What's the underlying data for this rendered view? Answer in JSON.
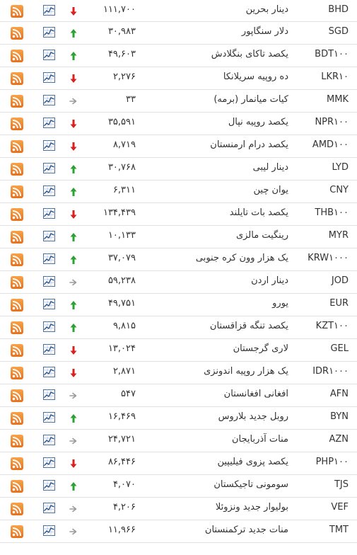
{
  "colors": {
    "up": "#2aa131",
    "down": "#d92020",
    "flat": "#9a9a9a",
    "rss": "#f0821f",
    "chart": "#4a6fa5"
  },
  "icons": {
    "feed": "rss-icon",
    "chart": "chart-icon",
    "trend": "trend-arrow-icon"
  },
  "rows": [
    {
      "code": "BHD",
      "name": "دینار بحرین",
      "price": "۱۱۱,۷۰۰",
      "trend": "down"
    },
    {
      "code": "SGD",
      "name": "دلار سنگاپور",
      "price": "۳۰,۹۸۳",
      "trend": "up"
    },
    {
      "code": "BDT۱۰۰",
      "name": "یکصد تاکای بنگلادش",
      "price": "۴۹,۶۰۳",
      "trend": "up"
    },
    {
      "code": "LKR۱۰",
      "name": "ده روپیه سریلانکا",
      "price": "۲,۲۷۶",
      "trend": "down"
    },
    {
      "code": "MMK",
      "name": "کیات میانمار (برمه)",
      "price": "۳۳",
      "trend": "flat"
    },
    {
      "code": "NPR۱۰۰",
      "name": "یکصد روپیه نپال",
      "price": "۳۵,۵۹۱",
      "trend": "down"
    },
    {
      "code": "AMD۱۰۰",
      "name": "یکصد درام ارمنستان",
      "price": "۸,۷۱۹",
      "trend": "down"
    },
    {
      "code": "LYD",
      "name": "دینار لیبی",
      "price": "۳۰,۷۶۸",
      "trend": "up"
    },
    {
      "code": "CNY",
      "name": "یوان چین",
      "price": "۶,۳۱۱",
      "trend": "up"
    },
    {
      "code": "THB۱۰۰",
      "name": "یکصد بات تایلند",
      "price": "۱۳۴,۴۳۹",
      "trend": "down"
    },
    {
      "code": "MYR",
      "name": "رینگیت مالزی",
      "price": "۱۰,۱۳۳",
      "trend": "up"
    },
    {
      "code": "KRW۱۰۰۰",
      "name": "یک هزار وون کره جنوبی",
      "price": "۳۷,۰۷۹",
      "trend": "up"
    },
    {
      "code": "JOD",
      "name": "دینار اردن",
      "price": "۵۹,۲۳۸",
      "trend": "flat"
    },
    {
      "code": "EUR",
      "name": "یورو",
      "price": "۴۹,۷۵۱",
      "trend": "up"
    },
    {
      "code": "KZT۱۰۰",
      "name": "یکصد تنگه قزاقستان",
      "price": "۹,۸۱۵",
      "trend": "up"
    },
    {
      "code": "GEL",
      "name": "لاری گرجستان",
      "price": "۱۳,۰۲۴",
      "trend": "down"
    },
    {
      "code": "IDR۱۰۰۰",
      "name": "یک هزار روپیه اندونزی",
      "price": "۲,۸۷۱",
      "trend": "down"
    },
    {
      "code": "AFN",
      "name": "افغانی افغانستان",
      "price": "۵۴۷",
      "trend": "flat"
    },
    {
      "code": "BYN",
      "name": "روبل جدید بلاروس",
      "price": "۱۶,۴۶۹",
      "trend": "up"
    },
    {
      "code": "AZN",
      "name": "منات آذربایجان",
      "price": "۲۴,۷۲۱",
      "trend": "flat"
    },
    {
      "code": "PHP۱۰۰",
      "name": "یکصد پزوی فیلیپین",
      "price": "۸۶,۴۴۶",
      "trend": "down"
    },
    {
      "code": "TJS",
      "name": "سومونی تاجیکستان",
      "price": "۴,۰۷۰",
      "trend": "up"
    },
    {
      "code": "VEF",
      "name": "بولیوار جدید ونزوئلا",
      "price": "۴,۲۰۶",
      "trend": "flat"
    },
    {
      "code": "TMT",
      "name": "منات جدید ترکمنستان",
      "price": "۱۱,۹۶۶",
      "trend": "flat"
    }
  ]
}
